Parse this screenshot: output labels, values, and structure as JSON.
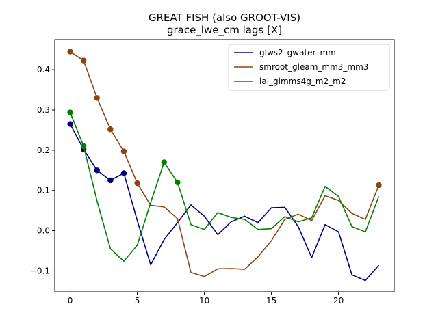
{
  "chart_data": {
    "type": "line",
    "title": "GREAT FISH (also GROOT-VIS)",
    "subtitle": "grace_lwe_cm lags [X]",
    "xlabel": "",
    "ylabel": "",
    "xlim": [
      -1.15,
      24.15
    ],
    "ylim": [
      -0.152,
      0.475
    ],
    "x_ticks": [
      0,
      5,
      10,
      15,
      20
    ],
    "y_ticks": [
      -0.1,
      0.0,
      0.1,
      0.2,
      0.3,
      0.4
    ],
    "y_tick_labels": [
      "−0.1",
      "0.0",
      "0.1",
      "0.2",
      "0.3",
      "0.4"
    ],
    "grid": false,
    "legend_position": "upper-right",
    "x": [
      0,
      1,
      2,
      3,
      4,
      5,
      6,
      7,
      8,
      9,
      10,
      11,
      12,
      13,
      14,
      15,
      16,
      17,
      18,
      19,
      20,
      21,
      22,
      23
    ],
    "series": [
      {
        "name": "glws2_gwater_mm",
        "color": "#00007f",
        "values": [
          0.265,
          0.202,
          0.15,
          0.125,
          0.143,
          0.025,
          -0.085,
          -0.022,
          0.02,
          0.064,
          0.036,
          -0.01,
          0.022,
          0.036,
          0.02,
          0.057,
          0.058,
          0.01,
          -0.067,
          0.015,
          -0.003,
          -0.11,
          -0.124,
          -0.086
        ],
        "marker_x": [
          0,
          1,
          2,
          3,
          4
        ]
      },
      {
        "name": "smroot_gleam_mm3_mm3",
        "color": "#8b4513",
        "values": [
          0.445,
          0.423,
          0.33,
          0.252,
          0.197,
          0.118,
          0.063,
          0.059,
          0.03,
          -0.104,
          -0.114,
          -0.095,
          -0.094,
          -0.096,
          -0.065,
          -0.025,
          0.028,
          0.041,
          0.025,
          0.087,
          0.075,
          0.043,
          0.028,
          0.113
        ],
        "marker_x": [
          0,
          1,
          2,
          3,
          4,
          5,
          23
        ]
      },
      {
        "name": "lai_gimms4g_m2_m2",
        "color": "#008000",
        "values": [
          0.294,
          0.21,
          0.074,
          -0.045,
          -0.076,
          -0.036,
          0.07,
          0.17,
          0.12,
          0.015,
          0.003,
          0.045,
          0.033,
          0.028,
          0.003,
          0.005,
          0.035,
          0.022,
          0.032,
          0.11,
          0.085,
          0.01,
          -0.003,
          0.085
        ],
        "marker_x": [
          0,
          1,
          7,
          8
        ]
      }
    ]
  }
}
